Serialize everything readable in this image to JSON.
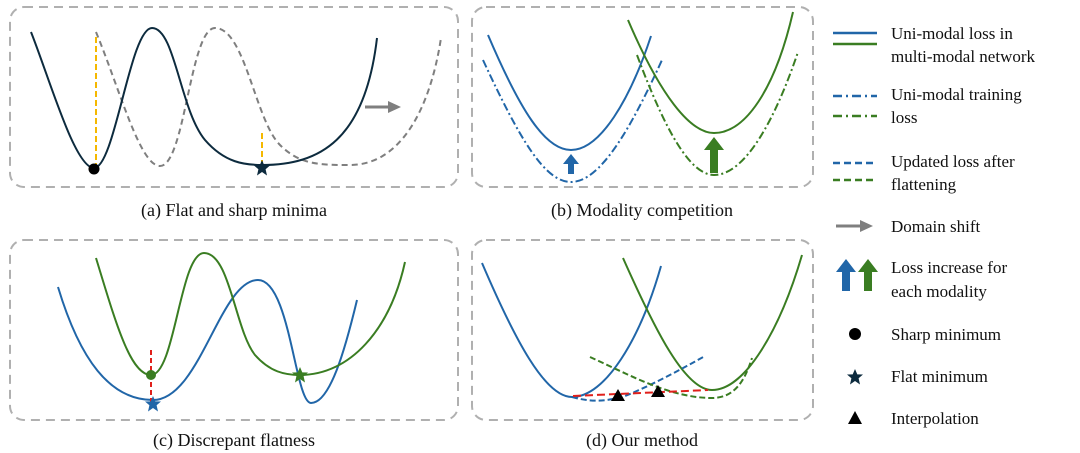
{
  "panels": {
    "a": {
      "caption": "(a) Flat and sharp minima"
    },
    "b": {
      "caption": "(b) Modality competition"
    },
    "c": {
      "caption": "(c) Discrepant flatness"
    },
    "d": {
      "caption": "(d) Our method"
    }
  },
  "legend": {
    "items": [
      {
        "line1": "Uni-modal loss in",
        "line2": "multi-modal network"
      },
      {
        "line1": "Uni-modal training",
        "line2": "loss"
      },
      {
        "line1": "Updated loss after",
        "line2": "flattening"
      },
      {
        "line1": "Domain shift"
      },
      {
        "line1": "Loss increase for",
        "line2": "each modality"
      },
      {
        "line1": "Sharp minimum"
      },
      {
        "line1": "Flat minimum"
      },
      {
        "line1": "Interpolation"
      }
    ]
  },
  "colors": {
    "modality_1": "#2166a8",
    "modality_2": "#3a7d22",
    "loss_curve": "#0d2b3e",
    "shifted_loss": "#7f7f7f",
    "width_marker": "#f5b800",
    "interpolation": "#e0201b"
  }
}
